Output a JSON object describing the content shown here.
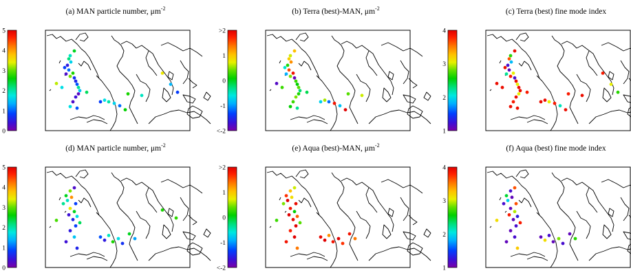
{
  "colormap": [
    "#7a00a8",
    "#3a10d8",
    "#0040ff",
    "#00b0ff",
    "#00e8e0",
    "#00e080",
    "#00d000",
    "#60e000",
    "#e8f000",
    "#ffc000",
    "#ff7000",
    "#ff2000",
    "#e00000"
  ],
  "chart_data": [
    {
      "id": "a",
      "type": "scatter",
      "title": "(a) MAN particle number, μm",
      "title_sup": "-2",
      "colorbar": {
        "range": [
          0,
          5
        ],
        "ticks": [
          "0",
          "1",
          "2",
          "3",
          "4",
          "5"
        ]
      },
      "points": [
        {
          "lon": -34,
          "lat": -7,
          "v": 3.2
        },
        {
          "lon": -14,
          "lat": 28,
          "v": 1.8
        },
        {
          "lon": -16,
          "lat": 24,
          "v": 2.1
        },
        {
          "lon": -13,
          "lat": 20,
          "v": 1.5
        },
        {
          "lon": -18,
          "lat": 16,
          "v": 0.5
        },
        {
          "lon": -22,
          "lat": 13,
          "v": 0.8
        },
        {
          "lon": -16,
          "lat": 10,
          "v": 1.0
        },
        {
          "lon": -10,
          "lat": 6,
          "v": 2.6
        },
        {
          "lon": -20,
          "lat": 5,
          "v": 0.3
        },
        {
          "lon": -14,
          "lat": 2,
          "v": 3.0
        },
        {
          "lon": -8,
          "lat": 0,
          "v": 0.7
        },
        {
          "lon": -6,
          "lat": -4,
          "v": 0.6
        },
        {
          "lon": -4,
          "lat": -8,
          "v": 0.9
        },
        {
          "lon": -2,
          "lat": -12,
          "v": 2.0
        },
        {
          "lon": 0,
          "lat": -16,
          "v": 1.4
        },
        {
          "lon": -2,
          "lat": -20,
          "v": 0.2
        },
        {
          "lon": -6,
          "lat": -24,
          "v": 0.4
        },
        {
          "lon": -10,
          "lat": -30,
          "v": 0.3
        },
        {
          "lon": -14,
          "lat": -36,
          "v": 1.6
        },
        {
          "lon": -4,
          "lat": -38,
          "v": 0.9
        },
        {
          "lon": 30,
          "lat": -30,
          "v": 0.8
        },
        {
          "lon": 36,
          "lat": -28,
          "v": 1.6
        },
        {
          "lon": 42,
          "lat": -30,
          "v": 1.9
        },
        {
          "lon": 50,
          "lat": -32,
          "v": 1.5
        },
        {
          "lon": 58,
          "lat": -35,
          "v": 1.0
        },
        {
          "lon": 66,
          "lat": -40,
          "v": 2.5
        },
        {
          "lon": 70,
          "lat": -20,
          "v": 2.6
        },
        {
          "lon": 90,
          "lat": -22,
          "v": 1.8
        },
        {
          "lon": 120,
          "lat": 6,
          "v": 3.4
        },
        {
          "lon": 132,
          "lat": -8,
          "v": 1.3
        },
        {
          "lon": 142,
          "lat": -18,
          "v": 0.8
        },
        {
          "lon": -8,
          "lat": 34,
          "v": 2.4
        },
        {
          "lon": -26,
          "lat": -12,
          "v": 1.6
        },
        {
          "lon": 10,
          "lat": -18,
          "v": 2.2
        }
      ]
    },
    {
      "id": "b",
      "type": "scatter",
      "title": "(b) Terra (best)-MAN, μm",
      "title_sup": "-2",
      "colorbar": {
        "range": [
          -2,
          2
        ],
        "ticks": [
          "<-2",
          "-1",
          "0",
          "1",
          ">2"
        ]
      },
      "points": [
        {
          "lon": -34,
          "lat": -7,
          "v": -1.8
        },
        {
          "lon": -14,
          "lat": 28,
          "v": 0.6
        },
        {
          "lon": -16,
          "lat": 24,
          "v": 0.9
        },
        {
          "lon": -13,
          "lat": 20,
          "v": 1.2
        },
        {
          "lon": -18,
          "lat": 16,
          "v": 0.1
        },
        {
          "lon": -22,
          "lat": 13,
          "v": -0.6
        },
        {
          "lon": -16,
          "lat": 10,
          "v": 1.5
        },
        {
          "lon": -10,
          "lat": 6,
          "v": 1.8
        },
        {
          "lon": -20,
          "lat": 5,
          "v": -1.0
        },
        {
          "lon": -14,
          "lat": 2,
          "v": 0.4
        },
        {
          "lon": -8,
          "lat": 0,
          "v": -1.9
        },
        {
          "lon": -6,
          "lat": -4,
          "v": 0.2
        },
        {
          "lon": -4,
          "lat": -8,
          "v": 0.0
        },
        {
          "lon": -2,
          "lat": -12,
          "v": 0.3
        },
        {
          "lon": 0,
          "lat": -16,
          "v": -0.3
        },
        {
          "lon": -2,
          "lat": -20,
          "v": 0.1
        },
        {
          "lon": -6,
          "lat": -24,
          "v": 0.4
        },
        {
          "lon": -10,
          "lat": -30,
          "v": 0.2
        },
        {
          "lon": -14,
          "lat": -36,
          "v": 0.0
        },
        {
          "lon": -4,
          "lat": -38,
          "v": -0.4
        },
        {
          "lon": 30,
          "lat": -30,
          "v": -0.8
        },
        {
          "lon": 36,
          "lat": -28,
          "v": 0.5
        },
        {
          "lon": 42,
          "lat": -30,
          "v": -1.2
        },
        {
          "lon": 50,
          "lat": -32,
          "v": 1.8
        },
        {
          "lon": 58,
          "lat": -35,
          "v": -0.9
        },
        {
          "lon": 66,
          "lat": -40,
          "v": 2.0
        },
        {
          "lon": 70,
          "lat": -20,
          "v": 0.3
        },
        {
          "lon": 90,
          "lat": -22,
          "v": 0.6
        },
        {
          "lon": -8,
          "lat": 34,
          "v": 1.0
        },
        {
          "lon": -26,
          "lat": -12,
          "v": 0.2
        },
        {
          "lon": 10,
          "lat": -18,
          "v": -0.2
        }
      ]
    },
    {
      "id": "c",
      "type": "scatter",
      "title": "(c) Terra (best) fine mode index",
      "title_sup": "",
      "colorbar": {
        "range": [
          1,
          4
        ],
        "ticks": [
          "1",
          "2",
          "3",
          "4"
        ]
      },
      "points": [
        {
          "lon": -34,
          "lat": -7,
          "v": 3.9
        },
        {
          "lon": -14,
          "lat": 28,
          "v": 2.6
        },
        {
          "lon": -16,
          "lat": 24,
          "v": 3.6
        },
        {
          "lon": -13,
          "lat": 20,
          "v": 1.8
        },
        {
          "lon": -18,
          "lat": 16,
          "v": 1.2
        },
        {
          "lon": -22,
          "lat": 13,
          "v": 3.9
        },
        {
          "lon": -16,
          "lat": 10,
          "v": 1.1
        },
        {
          "lon": -10,
          "lat": 6,
          "v": 3.0
        },
        {
          "lon": -20,
          "lat": 5,
          "v": 2.2
        },
        {
          "lon": -14,
          "lat": 2,
          "v": 3.8
        },
        {
          "lon": -8,
          "lat": 0,
          "v": 1.2
        },
        {
          "lon": -6,
          "lat": -4,
          "v": 3.9
        },
        {
          "lon": -4,
          "lat": -8,
          "v": 3.0
        },
        {
          "lon": -2,
          "lat": -12,
          "v": 3.9
        },
        {
          "lon": 0,
          "lat": -16,
          "v": 3.9
        },
        {
          "lon": -2,
          "lat": -20,
          "v": 3.0
        },
        {
          "lon": -6,
          "lat": -24,
          "v": 3.9
        },
        {
          "lon": -10,
          "lat": -30,
          "v": 3.8
        },
        {
          "lon": -14,
          "lat": -36,
          "v": 3.9
        },
        {
          "lon": -4,
          "lat": -38,
          "v": 3.9
        },
        {
          "lon": 30,
          "lat": -30,
          "v": 3.9
        },
        {
          "lon": 36,
          "lat": -28,
          "v": 3.9
        },
        {
          "lon": 42,
          "lat": -30,
          "v": 3.0
        },
        {
          "lon": 50,
          "lat": -32,
          "v": 3.8
        },
        {
          "lon": 58,
          "lat": -35,
          "v": 2.1
        },
        {
          "lon": 66,
          "lat": -40,
          "v": 3.9
        },
        {
          "lon": 70,
          "lat": -20,
          "v": 3.8
        },
        {
          "lon": 90,
          "lat": -22,
          "v": 3.9
        },
        {
          "lon": 120,
          "lat": 6,
          "v": 3.8
        },
        {
          "lon": 132,
          "lat": -8,
          "v": 3.0
        },
        {
          "lon": 142,
          "lat": -18,
          "v": 2.6
        },
        {
          "lon": -8,
          "lat": 34,
          "v": 3.9
        },
        {
          "lon": -26,
          "lat": -12,
          "v": 3.9
        },
        {
          "lon": 10,
          "lat": -18,
          "v": 3.8
        }
      ]
    },
    {
      "id": "d",
      "type": "scatter",
      "title": "(d) MAN particle number, μm",
      "title_sup": "-2",
      "colorbar": {
        "range": [
          0,
          5
        ],
        "ticks": [
          "0",
          "1",
          "2",
          "3",
          "4",
          "5"
        ]
      },
      "points": [
        {
          "lon": -34,
          "lat": -7,
          "v": 2.8
        },
        {
          "lon": -14,
          "lat": 30,
          "v": 3.0
        },
        {
          "lon": -20,
          "lat": 24,
          "v": 2.4
        },
        {
          "lon": -12,
          "lat": 22,
          "v": 4.0
        },
        {
          "lon": -18,
          "lat": 18,
          "v": 1.8
        },
        {
          "lon": -24,
          "lat": 14,
          "v": 2.0
        },
        {
          "lon": -6,
          "lat": 14,
          "v": 0.8
        },
        {
          "lon": -14,
          "lat": 8,
          "v": 3.4
        },
        {
          "lon": -8,
          "lat": 4,
          "v": 2.4
        },
        {
          "lon": -16,
          "lat": 0,
          "v": 0.4
        },
        {
          "lon": -4,
          "lat": -2,
          "v": 1.6
        },
        {
          "lon": -10,
          "lat": -6,
          "v": 0.6
        },
        {
          "lon": 0,
          "lat": -10,
          "v": 2.2
        },
        {
          "lon": -6,
          "lat": -14,
          "v": 0.8
        },
        {
          "lon": -14,
          "lat": -20,
          "v": 0.5
        },
        {
          "lon": -8,
          "lat": -28,
          "v": 1.4
        },
        {
          "lon": -20,
          "lat": -34,
          "v": 0.4
        },
        {
          "lon": -4,
          "lat": -42,
          "v": 0.6
        },
        {
          "lon": 30,
          "lat": -28,
          "v": 0.9
        },
        {
          "lon": 36,
          "lat": -32,
          "v": 0.5
        },
        {
          "lon": 42,
          "lat": -26,
          "v": 1.8
        },
        {
          "lon": 48,
          "lat": -34,
          "v": 2.6
        },
        {
          "lon": 56,
          "lat": -30,
          "v": 1.6
        },
        {
          "lon": 62,
          "lat": -36,
          "v": 0.7
        },
        {
          "lon": 72,
          "lat": -24,
          "v": 2.4
        },
        {
          "lon": 80,
          "lat": -30,
          "v": 1.2
        },
        {
          "lon": 120,
          "lat": 6,
          "v": 2.6
        },
        {
          "lon": 140,
          "lat": -4,
          "v": 2.7
        },
        {
          "lon": -8,
          "lat": 34,
          "v": 0.3
        }
      ]
    },
    {
      "id": "e",
      "type": "scatter",
      "title": "(e) Aqua (best)-MAN, μm",
      "title_sup": "-2",
      "colorbar": {
        "range": [
          -2,
          2
        ],
        "ticks": [
          "<-2",
          "-1",
          "0",
          "1",
          ">2"
        ]
      },
      "points": [
        {
          "lon": -34,
          "lat": -7,
          "v": 0.2
        },
        {
          "lon": -14,
          "lat": 30,
          "v": 1.0
        },
        {
          "lon": -20,
          "lat": 24,
          "v": 1.6
        },
        {
          "lon": -12,
          "lat": 22,
          "v": 0.8
        },
        {
          "lon": -18,
          "lat": 18,
          "v": 2.0
        },
        {
          "lon": -24,
          "lat": 14,
          "v": 0.4
        },
        {
          "lon": -6,
          "lat": 14,
          "v": 1.9
        },
        {
          "lon": -14,
          "lat": 8,
          "v": 1.8
        },
        {
          "lon": -8,
          "lat": 4,
          "v": 0.0
        },
        {
          "lon": -16,
          "lat": 0,
          "v": 2.0
        },
        {
          "lon": -4,
          "lat": -2,
          "v": 1.4
        },
        {
          "lon": -10,
          "lat": -6,
          "v": 1.9
        },
        {
          "lon": 0,
          "lat": -10,
          "v": 0.3
        },
        {
          "lon": -6,
          "lat": -14,
          "v": 2.0
        },
        {
          "lon": -14,
          "lat": -20,
          "v": 1.7
        },
        {
          "lon": -8,
          "lat": -28,
          "v": 2.0
        },
        {
          "lon": -20,
          "lat": -34,
          "v": 1.8
        },
        {
          "lon": -4,
          "lat": -42,
          "v": 1.3
        },
        {
          "lon": 30,
          "lat": -28,
          "v": 1.9
        },
        {
          "lon": 36,
          "lat": -32,
          "v": 2.0
        },
        {
          "lon": 42,
          "lat": -26,
          "v": 1.2
        },
        {
          "lon": 48,
          "lat": -34,
          "v": 1.8
        },
        {
          "lon": 56,
          "lat": -30,
          "v": 2.0
        },
        {
          "lon": 62,
          "lat": -36,
          "v": 1.6
        },
        {
          "lon": 72,
          "lat": -24,
          "v": 1.8
        },
        {
          "lon": 80,
          "lat": -30,
          "v": 1.3
        },
        {
          "lon": -8,
          "lat": 34,
          "v": 0.6
        }
      ]
    },
    {
      "id": "f",
      "type": "scatter",
      "title": "(f) Aqua (best) fine mode index",
      "title_sup": "",
      "colorbar": {
        "range": [
          1,
          4
        ],
        "ticks": [
          "1",
          "2",
          "3",
          "4"
        ]
      },
      "points": [
        {
          "lon": -34,
          "lat": -7,
          "v": 3.1
        },
        {
          "lon": -14,
          "lat": 30,
          "v": 1.2
        },
        {
          "lon": -20,
          "lat": 24,
          "v": 2.4
        },
        {
          "lon": -12,
          "lat": 22,
          "v": 1.1
        },
        {
          "lon": -18,
          "lat": 18,
          "v": 1.9
        },
        {
          "lon": -24,
          "lat": 14,
          "v": 1.2
        },
        {
          "lon": -6,
          "lat": 14,
          "v": 3.6
        },
        {
          "lon": -14,
          "lat": 8,
          "v": 1.1
        },
        {
          "lon": -8,
          "lat": 4,
          "v": 2.9
        },
        {
          "lon": -16,
          "lat": 0,
          "v": 3.8
        },
        {
          "lon": -4,
          "lat": -2,
          "v": 1.3
        },
        {
          "lon": -10,
          "lat": -6,
          "v": 1.1
        },
        {
          "lon": 0,
          "lat": -10,
          "v": 3.8
        },
        {
          "lon": -6,
          "lat": -14,
          "v": 1.2
        },
        {
          "lon": -14,
          "lat": -20,
          "v": 1.1
        },
        {
          "lon": -8,
          "lat": -28,
          "v": 1.2
        },
        {
          "lon": -20,
          "lat": -34,
          "v": 1.1
        },
        {
          "lon": -4,
          "lat": -42,
          "v": 3.2
        },
        {
          "lon": 30,
          "lat": -28,
          "v": 1.1
        },
        {
          "lon": 36,
          "lat": -32,
          "v": 3.1
        },
        {
          "lon": 42,
          "lat": -26,
          "v": 1.2
        },
        {
          "lon": 48,
          "lat": -34,
          "v": 1.1
        },
        {
          "lon": 56,
          "lat": -30,
          "v": 2.8
        },
        {
          "lon": 62,
          "lat": -36,
          "v": 1.2
        },
        {
          "lon": 72,
          "lat": -24,
          "v": 1.1
        },
        {
          "lon": 80,
          "lat": -30,
          "v": 2.6
        },
        {
          "lon": -8,
          "lat": 34,
          "v": 3.6
        }
      ]
    }
  ]
}
